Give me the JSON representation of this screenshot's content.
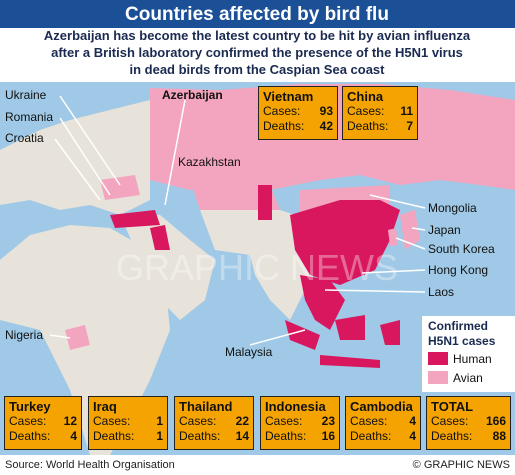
{
  "title": "Countries affected by bird flu",
  "subtitle_lines": [
    "Azerbaijan has become the latest country to be hit by avian influenza",
    "after a British laboratory confirmed the presence of the H5N1 virus",
    "in dead birds from the Caspian Sea coast"
  ],
  "labels": {
    "cases": "Cases:",
    "deaths": "Deaths:"
  },
  "boxes": [
    {
      "country": "Vietnam",
      "cases": 93,
      "deaths": 42
    },
    {
      "country": "China",
      "cases": 11,
      "deaths": 7
    },
    {
      "country": "Turkey",
      "cases": 12,
      "deaths": 4
    },
    {
      "country": "Iraq",
      "cases": 1,
      "deaths": 1
    },
    {
      "country": "Thailand",
      "cases": 22,
      "deaths": 14
    },
    {
      "country": "Indonesia",
      "cases": 23,
      "deaths": 16
    },
    {
      "country": "Cambodia",
      "cases": 4,
      "deaths": 4
    },
    {
      "country": "TOTAL",
      "cases": 166,
      "deaths": 88
    }
  ],
  "map_labels": [
    "Ukraine",
    "Romania",
    "Croatia",
    "Azerbaijan",
    "Kazakhstan",
    "Mongolia",
    "Japan",
    "South Korea",
    "Hong Kong",
    "Laos",
    "Nigeria",
    "Malaysia"
  ],
  "legend": {
    "title_lines": [
      "Confirmed",
      "H5N1 cases"
    ],
    "items": [
      {
        "label": "Human",
        "color": "#d8175e"
      },
      {
        "label": "Avian",
        "color": "#f3a5bf"
      }
    ]
  },
  "watermark": "GRAPHIC NEWS",
  "source": "Source: World Health Organisation",
  "credit": "© GRAPHIC NEWS"
}
